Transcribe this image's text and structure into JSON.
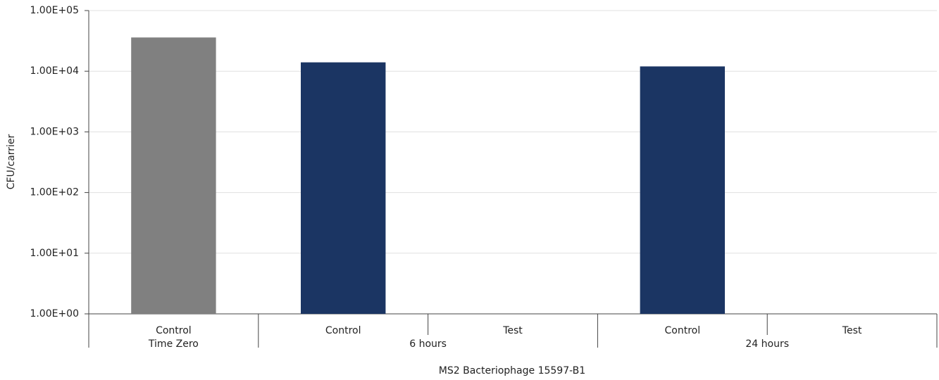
{
  "chart_data": {
    "type": "bar",
    "x_label": "MS2 Bacteriophage 15597-B1",
    "y_label": "CFU/carrier",
    "categories": [
      "Control",
      "Control",
      "Test",
      "Control",
      "Test"
    ],
    "category_groups": [
      {
        "name": "Time Zero",
        "size": 1
      },
      {
        "name": "6 hours",
        "size": 2
      },
      {
        "name": "24 hours",
        "size": 2
      }
    ],
    "values": [
      36000,
      14000,
      null,
      12000,
      null
    ],
    "colors": [
      "#808080",
      "#1b3563",
      "#1b3563",
      "#1b3563",
      "#1b3563"
    ],
    "yscale": "log",
    "ylim": [
      1,
      100000
    ],
    "yticks": [
      {
        "value": 1,
        "label": "1.00E+00"
      },
      {
        "value": 10,
        "label": "1.00E+01"
      },
      {
        "value": 100,
        "label": "1.00E+02"
      },
      {
        "value": 1000,
        "label": "1.00E+03"
      },
      {
        "value": 10000,
        "label": "1.00E+04"
      },
      {
        "value": 100000,
        "label": "1.00E+05"
      }
    ],
    "grid": true
  }
}
